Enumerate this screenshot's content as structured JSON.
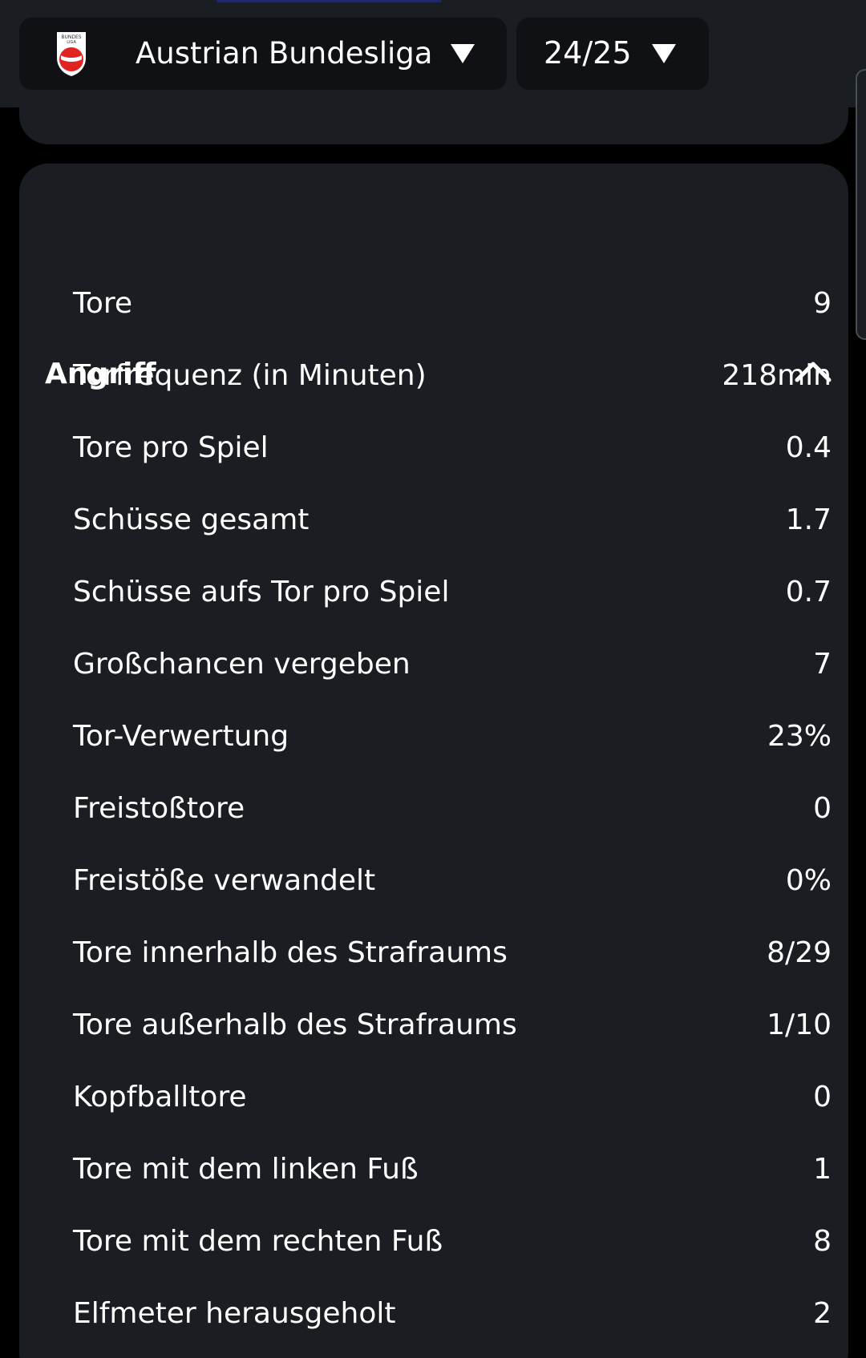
{
  "header": {
    "league": {
      "name": "Austrian Bundesliga",
      "logo_icon": "bundesliga-austria-logo-icon",
      "caret_icon": "caret-down-icon"
    },
    "season": {
      "label": "24/25",
      "caret_icon": "caret-down-icon"
    }
  },
  "section": {
    "title": "Angriff",
    "toggle_icon": "chevron-up-icon",
    "stats": [
      {
        "label": "Tore",
        "value": "9"
      },
      {
        "label": "Torfrequenz (in Minuten)",
        "value": "218min"
      },
      {
        "label": "Tore pro Spiel",
        "value": "0.4"
      },
      {
        "label": "Schüsse gesamt",
        "value": "1.7"
      },
      {
        "label": "Schüsse aufs Tor pro Spiel",
        "value": "0.7"
      },
      {
        "label": "Großchancen vergeben",
        "value": "7"
      },
      {
        "label": "Tor-Verwertung",
        "value": "23%"
      },
      {
        "label": "Freistoßtore",
        "value": "0"
      },
      {
        "label": "Freistöße verwandelt",
        "value": "0%"
      },
      {
        "label": "Tore innerhalb des Strafraums",
        "value": "8/29"
      },
      {
        "label": "Tore außerhalb des Strafraums",
        "value": "1/10"
      },
      {
        "label": "Kopfballtore",
        "value": "0"
      },
      {
        "label": "Tore mit dem linken Fuß",
        "value": "1"
      },
      {
        "label": "Tore mit dem rechten Fuß",
        "value": "8"
      },
      {
        "label": "Elfmeter herausgeholt",
        "value": "2"
      }
    ]
  },
  "colors": {
    "page_background": "#000000",
    "card_background": "#1a1d21",
    "dropdown_background": "#0f1114",
    "text": "#ffffff",
    "logo_red": "#e1241f"
  }
}
